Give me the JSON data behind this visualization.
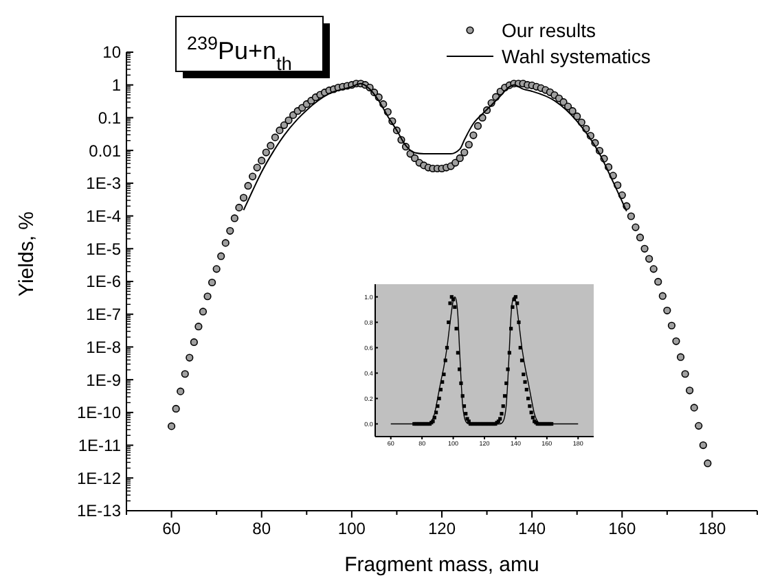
{
  "chart_data": [
    {
      "type": "scatter",
      "xlabel": "Fragment mass, amu",
      "ylabel": "Yields, %",
      "annotations": [
        "$^{239}$Pu+n$_{th}$"
      ],
      "log": "y",
      "legend": "top right",
      "xlim": [
        50,
        190
      ],
      "ylim": [
        1e-13,
        10
      ],
      "xticks": [
        {
          "value": 50,
          "label": null
        },
        60,
        {
          "value": 70,
          "label": null
        },
        80,
        {
          "value": 90,
          "label": null
        },
        100,
        {
          "value": 110,
          "label": null
        },
        120,
        {
          "value": 130,
          "label": null
        },
        140,
        {
          "value": 150,
          "label": null
        },
        160,
        {
          "value": 170,
          "label": null
        },
        180,
        {
          "value": 190,
          "label": null
        }
      ],
      "yticks": [
        10,
        1,
        0.1,
        0.01,
        {
          "value": 0.001,
          "label": "1E-3"
        },
        {
          "value": 0.0001,
          "label": "1E-4"
        },
        {
          "value": 1e-05,
          "label": "1E-5"
        },
        {
          "value": 1e-06,
          "label": "1E-6"
        },
        {
          "value": 1e-07,
          "label": "1E-7"
        },
        {
          "value": 1e-08,
          "label": "1E-8"
        },
        {
          "value": 1e-09,
          "label": "1E-9"
        },
        {
          "value": 1e-10,
          "label": "1E-10"
        },
        {
          "value": 1e-11,
          "label": "1E-11"
        },
        {
          "value": 1e-12,
          "label": "1E-12"
        },
        {
          "value": 1e-13,
          "label": "1E-13"
        }
      ],
      "series": [
        {
          "name": "Our results",
          "marker": "circle",
          "color": "#a0a0a0",
          "x": [
            60,
            61,
            62,
            63,
            64,
            65,
            66,
            67,
            68,
            69,
            70,
            71,
            72,
            73,
            74,
            75,
            76,
            77,
            78,
            79,
            80,
            81,
            82,
            83,
            84,
            85,
            86,
            87,
            88,
            89,
            90,
            91,
            92,
            93,
            94,
            95,
            96,
            97,
            98,
            99,
            100,
            101,
            102,
            103,
            104,
            105,
            106,
            107,
            108,
            109,
            110,
            111,
            112,
            113,
            114,
            115,
            116,
            117,
            118,
            119,
            120,
            121,
            122,
            123,
            124,
            125,
            126,
            127,
            128,
            129,
            130,
            131,
            132,
            133,
            134,
            135,
            136,
            137,
            138,
            139,
            140,
            141,
            142,
            143,
            144,
            145,
            146,
            147,
            148,
            149,
            150,
            151,
            152,
            153,
            154,
            155,
            156,
            157,
            158,
            159,
            160,
            161,
            162,
            163,
            164,
            165,
            166,
            167,
            168,
            169,
            170,
            171,
            172,
            173,
            174,
            175,
            176,
            177,
            178,
            179
          ],
          "values": [
            3.8e-11,
            1.3e-10,
            4.4e-10,
            1.5e-09,
            4.7e-09,
            1.4e-08,
            4.2e-08,
            1.2e-07,
            3.5e-07,
            9.3e-07,
            2.4e-06,
            5.9e-06,
            1.5e-05,
            3.5e-05,
            8.5e-05,
            0.00018,
            0.00036,
            0.00083,
            0.0016,
            0.003,
            0.0049,
            0.0087,
            0.014,
            0.025,
            0.041,
            0.059,
            0.083,
            0.12,
            0.16,
            0.2,
            0.26,
            0.33,
            0.42,
            0.5,
            0.59,
            0.68,
            0.74,
            0.83,
            0.88,
            0.94,
            1.0,
            1.1,
            1.1,
            1.0,
            0.83,
            0.59,
            0.42,
            0.26,
            0.15,
            0.078,
            0.041,
            0.021,
            0.013,
            0.0079,
            0.0058,
            0.0042,
            0.0035,
            0.003,
            0.0028,
            0.0028,
            0.0028,
            0.003,
            0.0033,
            0.0042,
            0.0058,
            0.0087,
            0.015,
            0.029,
            0.056,
            0.1,
            0.17,
            0.28,
            0.43,
            0.63,
            0.83,
            0.98,
            1.1,
            1.1,
            1.1,
            1.0,
            0.97,
            0.88,
            0.8,
            0.7,
            0.6,
            0.49,
            0.39,
            0.3,
            0.22,
            0.16,
            0.11,
            0.072,
            0.046,
            0.028,
            0.017,
            0.0098,
            0.0056,
            0.0031,
            0.0017,
            0.00087,
            0.00043,
            0.0002,
            9.8e-05,
            4.5e-05,
            2.2e-05,
            1e-05,
            4.9e-06,
            2.4e-06,
            9.8e-07,
            3.6e-07,
            1.3e-07,
            4.5e-08,
            1.5e-08,
            4.9e-09,
            1.5e-09,
            4.7e-10,
            1.4e-10,
            3.9e-11,
            1e-11,
            2.8e-12
          ]
        },
        {
          "name": "Wahl systematics",
          "type": "line",
          "color": "#000000",
          "x": [
            76,
            78,
            80,
            82,
            85,
            88,
            90,
            95,
            100,
            102,
            104,
            106,
            108,
            110,
            112,
            114,
            116,
            119,
            122,
            124,
            125,
            127,
            129,
            131,
            133,
            135,
            136,
            138,
            140,
            145,
            150,
            155,
            158,
            161
          ],
          "values": [
            0.00015,
            0.00059,
            0.0022,
            0.0068,
            0.029,
            0.091,
            0.17,
            0.54,
            0.88,
            1.1,
            0.75,
            0.33,
            0.11,
            0.041,
            0.014,
            0.0085,
            0.0079,
            0.0079,
            0.0079,
            0.011,
            0.021,
            0.066,
            0.13,
            0.24,
            0.46,
            0.88,
            1.0,
            0.75,
            0.64,
            0.33,
            0.078,
            0.0079,
            0.0011,
            0.00014
          ]
        }
      ]
    },
    {
      "type": "scatter",
      "xlim": [
        50,
        190
      ],
      "ylim": [
        -0.1,
        1.1
      ],
      "xticks": [
        60,
        80,
        100,
        120,
        140,
        160,
        180
      ],
      "yticks": [
        {
          "value": 0,
          "label": "0.0"
        },
        0.2,
        0.4,
        0.6,
        0.8,
        {
          "value": 1,
          "label": "1.0"
        }
      ],
      "series": [
        {
          "marker": "square",
          "color": "#000000",
          "x": [
            75,
            76,
            77,
            78,
            79,
            80,
            81,
            82,
            83,
            84,
            85,
            86,
            87,
            88,
            89,
            90,
            91,
            92,
            93,
            94,
            95,
            96,
            97,
            98,
            99,
            100,
            101,
            102,
            103,
            104,
            105,
            106,
            107,
            108,
            109,
            110,
            111,
            112,
            113,
            114,
            115,
            116,
            117,
            118,
            119,
            120,
            121,
            122,
            123,
            124,
            125,
            126,
            127,
            128,
            129,
            130,
            131,
            132,
            133,
            134,
            135,
            136,
            137,
            138,
            139,
            140,
            141,
            142,
            143,
            144,
            145,
            146,
            147,
            148,
            149,
            150,
            151,
            152,
            153,
            154,
            155,
            156,
            157,
            158,
            159,
            160,
            161,
            162,
            163
          ],
          "values": [
            0,
            0,
            0,
            0,
            0,
            0,
            0,
            0,
            0,
            0,
            0,
            0.01,
            0.02,
            0.05,
            0.09,
            0.14,
            0.2,
            0.27,
            0.33,
            0.39,
            0.5,
            0.6,
            0.8,
            0.95,
            1.0,
            0.98,
            0.92,
            0.75,
            0.56,
            0.43,
            0.32,
            0.22,
            0.14,
            0.08,
            0.04,
            0.02,
            0,
            0,
            0,
            0,
            0,
            0,
            0,
            0,
            0,
            0,
            0,
            0,
            0,
            0,
            0,
            0,
            0,
            0.01,
            0.02,
            0.04,
            0.08,
            0.14,
            0.22,
            0.32,
            0.43,
            0.56,
            0.75,
            0.92,
            0.98,
            1.0,
            0.95,
            0.8,
            0.6,
            0.5,
            0.39,
            0.33,
            0.27,
            0.2,
            0.14,
            0.09,
            0.05,
            0.02,
            0.01,
            0,
            0,
            0,
            0,
            0,
            0,
            0,
            0,
            0,
            0
          ]
        },
        {
          "type": "line",
          "color": "#000000",
          "x": [
            60,
            84,
            86,
            88,
            90,
            92,
            94,
            96,
            98,
            100,
            101,
            102,
            103,
            104,
            105,
            106,
            107,
            108,
            110,
            130,
            132,
            133,
            134,
            135,
            136,
            137,
            138,
            139,
            140,
            142,
            144,
            146,
            148,
            150,
            152,
            154,
            156,
            180
          ],
          "values": [
            0,
            0,
            0.02,
            0.08,
            0.2,
            0.33,
            0.45,
            0.6,
            0.8,
            0.97,
            1.0,
            0.97,
            0.85,
            0.6,
            0.35,
            0.15,
            0.06,
            0.02,
            0,
            0,
            0.02,
            0.06,
            0.15,
            0.35,
            0.6,
            0.85,
            0.97,
            1.0,
            0.97,
            0.8,
            0.6,
            0.45,
            0.33,
            0.2,
            0.08,
            0.02,
            0,
            0
          ]
        }
      ]
    }
  ]
}
